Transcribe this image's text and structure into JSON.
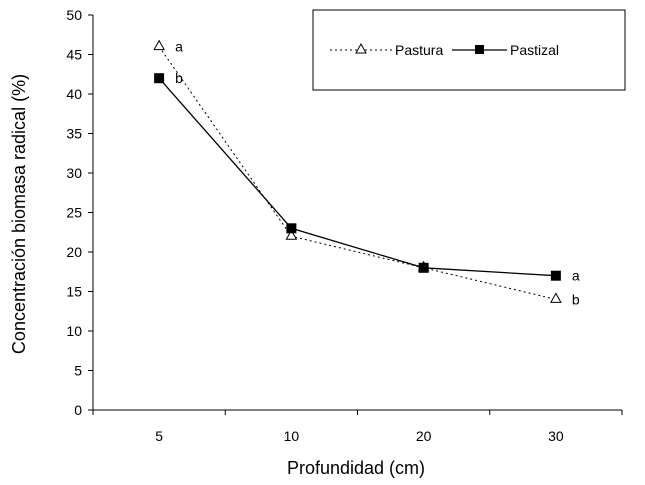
{
  "chart_data": {
    "type": "line",
    "categories": [
      "5",
      "10",
      "20",
      "30"
    ],
    "xlabel": "Profundidad (cm)",
    "ylabel": "Concentración biomasa radical (%)",
    "ylim": [
      0,
      50
    ],
    "yticks": [
      0,
      5,
      10,
      15,
      20,
      25,
      30,
      35,
      40,
      45,
      50
    ],
    "grid": false,
    "legend_position": "top-right",
    "series": [
      {
        "name": "Pastura",
        "values": [
          46,
          22,
          18,
          14
        ],
        "line_style": "dotted",
        "marker": "open-triangle",
        "color": "#000000",
        "annotations": [
          "a",
          "",
          "",
          "b"
        ]
      },
      {
        "name": "Pastizal",
        "values": [
          42,
          23,
          18,
          17
        ],
        "line_style": "solid",
        "marker": "filled-square",
        "color": "#000000",
        "annotations": [
          "b",
          "",
          "",
          "a"
        ]
      }
    ]
  }
}
